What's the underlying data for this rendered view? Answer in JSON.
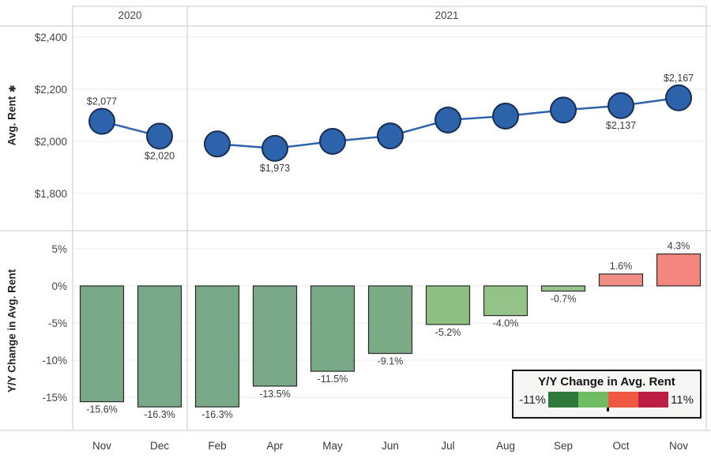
{
  "header": {
    "year_groups": [
      {
        "label": "2020",
        "span": 2
      },
      {
        "label": "2021",
        "span": 9
      }
    ]
  },
  "x_axis": {
    "categories": [
      "Nov",
      "Dec",
      "Feb",
      "Apr",
      "May",
      "Jun",
      "Jul",
      "Aug",
      "Sep",
      "Oct",
      "Nov"
    ]
  },
  "chart_data": [
    {
      "type": "line",
      "ylabel": "Avg. Rent",
      "ylabel_sort_icon": "✱",
      "ylim": [
        1750,
        2450
      ],
      "yticks": [
        {
          "label": "$2,400",
          "value": 2400
        },
        {
          "label": "$2,200",
          "value": 2200
        },
        {
          "label": "$2,000",
          "value": 2000
        },
        {
          "label": "$1,800",
          "value": 1800
        }
      ],
      "points": [
        {
          "month": "Nov",
          "year": "2020",
          "value": 2077,
          "label": "$2,077",
          "label_pos": "above"
        },
        {
          "month": "Dec",
          "year": "2020",
          "value": 2020,
          "label": "$2,020",
          "label_pos": "below"
        },
        {
          "month": "Feb",
          "year": "2021",
          "value": 1990
        },
        {
          "month": "Apr",
          "year": "2021",
          "value": 1973,
          "label": "$1,973",
          "label_pos": "below"
        },
        {
          "month": "May",
          "year": "2021",
          "value": 2000
        },
        {
          "month": "Jun",
          "year": "2021",
          "value": 2021
        },
        {
          "month": "Jul",
          "year": "2021",
          "value": 2082
        },
        {
          "month": "Aug",
          "year": "2021",
          "value": 2097
        },
        {
          "month": "Sep",
          "year": "2021",
          "value": 2120
        },
        {
          "month": "Oct",
          "year": "2021",
          "value": 2137,
          "label": "$2,137",
          "label_pos": "below"
        },
        {
          "month": "Nov",
          "year": "2021",
          "value": 2167,
          "label": "$2,167",
          "label_pos": "above"
        }
      ]
    },
    {
      "type": "bar",
      "ylabel": "Y/Y Change in Avg. Rent",
      "ylim": [
        -18.5,
        7.5
      ],
      "yticks": [
        {
          "label": "5%",
          "value": 5
        },
        {
          "label": "0%",
          "value": 0
        },
        {
          "label": "-5%",
          "value": -5
        },
        {
          "label": "-10%",
          "value": -10
        },
        {
          "label": "-15%",
          "value": -15
        }
      ],
      "bars": [
        {
          "month": "Nov",
          "value": -15.6,
          "label": "-15.6%",
          "color": "#79a888"
        },
        {
          "month": "Dec",
          "value": -16.3,
          "label": "-16.3%",
          "color": "#79a888"
        },
        {
          "month": "Feb",
          "value": -16.3,
          "label": "-16.3%",
          "color": "#79a888"
        },
        {
          "month": "Apr",
          "value": -13.5,
          "label": "-13.5%",
          "color": "#79a888"
        },
        {
          "month": "May",
          "value": -11.5,
          "label": "-11.5%",
          "color": "#7aa988"
        },
        {
          "month": "Jun",
          "value": -9.1,
          "label": "-9.1%",
          "color": "#7cab87"
        },
        {
          "month": "Jul",
          "value": -5.2,
          "label": "-5.2%",
          "color": "#8fbe83"
        },
        {
          "month": "Aug",
          "value": -4.0,
          "label": "-4.0%",
          "color": "#94c289"
        },
        {
          "month": "Sep",
          "value": -0.7,
          "label": "-0.7%",
          "color": "#97c48c"
        },
        {
          "month": "Oct",
          "value": 1.6,
          "label": "1.6%",
          "color": "#f28d86"
        },
        {
          "month": "Nov",
          "value": 4.3,
          "label": "4.3%",
          "color": "#f3867f"
        }
      ]
    }
  ],
  "legend": {
    "title": "Y/Y Change in Avg. Rent",
    "min_label": "-11%",
    "max_label": "11%",
    "colors": [
      "#30793d",
      "#6fbc64",
      "#ef5942",
      "#bd1e44"
    ]
  },
  "colors": {
    "marker_fill": "#2d63ab",
    "marker_stroke": "#1a2d55",
    "line": "#2d63ab",
    "bar_stroke": "#2a2a2a",
    "grid": "#ebebeb",
    "frame": "#c9c9c9",
    "tick_text": "#454545",
    "data_label_text": "#3a3a3a"
  }
}
